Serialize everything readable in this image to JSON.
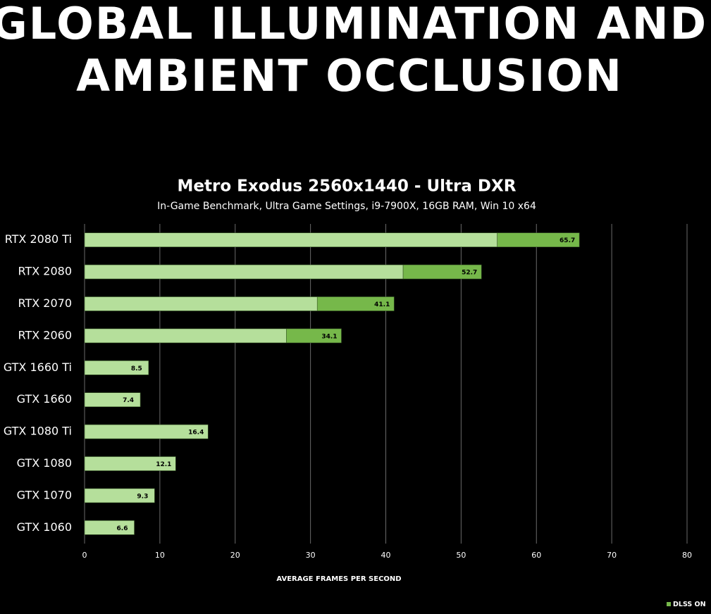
{
  "heading": [
    "GLOBAL ILLUMINATION AND",
    "AMBIENT OCCLUSION"
  ],
  "chart_data": {
    "type": "stacked-barh",
    "title": "Metro Exodus 2560x1440 - Ultra DXR",
    "subtitle": "In-Game Benchmark, Ultra Game Settings, i9-7900X, 16GB RAM, Win 10 x64",
    "x_label": "AVERAGE FRAMES PER SECOND",
    "categories": [
      "RTX 2080 Ti",
      "RTX 2080",
      "RTX 2070",
      "RTX 2060",
      "GTX 1660 Ti",
      "GTX 1660",
      "GTX 1080 Ti",
      "GTX 1080",
      "GTX 1070",
      "GTX 1060"
    ],
    "series": [
      {
        "color": "#b5df9b",
        "values": [
          54.8,
          42.3,
          30.9,
          26.8,
          8.5,
          7.4,
          16.4,
          12.1,
          9.3,
          6.6
        ]
      },
      {
        "name": "DLSS ON",
        "color": "#76b84a",
        "values": [
          10.9,
          10.4,
          10.2,
          7.3,
          null,
          null,
          null,
          null,
          null,
          null
        ]
      }
    ],
    "totals": [
      65.7,
      52.7,
      41.1,
      34.1,
      8.5,
      7.4,
      16.4,
      12.1,
      9.3,
      6.6
    ],
    "xlim": [
      0,
      80
    ],
    "xticks": [
      0,
      10,
      20,
      30,
      40,
      50,
      60,
      70,
      80
    ],
    "grid": true,
    "legend": "bottom-right"
  }
}
